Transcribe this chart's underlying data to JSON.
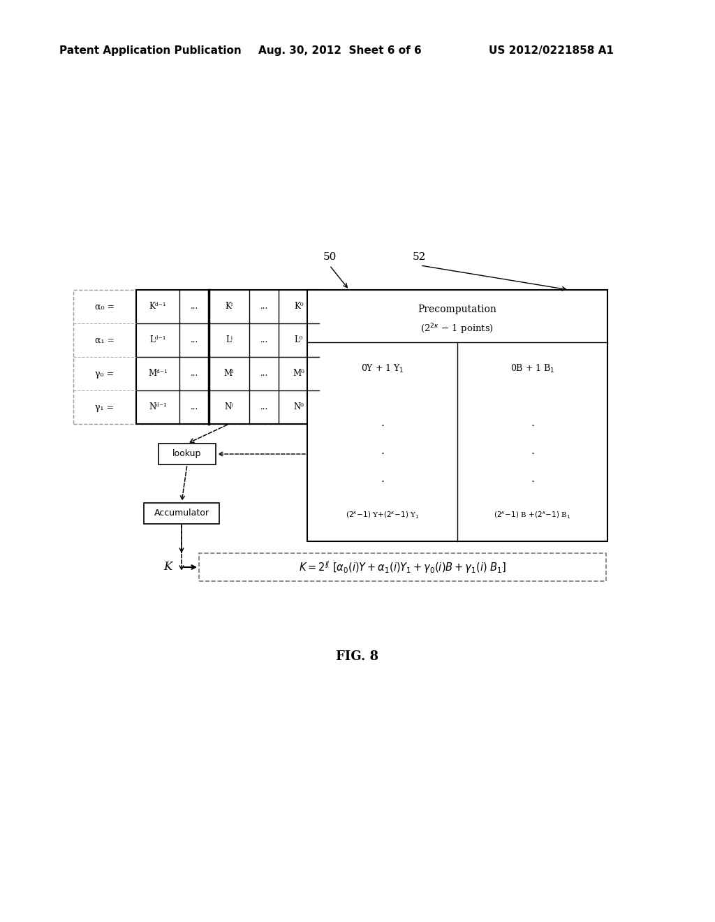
{
  "bg_color": "#ffffff",
  "header_left": "Patent Application Publication",
  "header_mid": "Aug. 30, 2012  Sheet 6 of 6",
  "header_right": "US 2012/0221858 A1",
  "fig_label": "FIG. 8",
  "label_50": "50",
  "label_52": "52",
  "label_K": "K",
  "lookup_label": "lookup",
  "accum_label": "Accumulator",
  "matrix_rows": [
    {
      "left": "α₀ =",
      "c1": "Kᵈ⁻¹",
      "c2": "...",
      "c3": "Kⁱ",
      "c4": "...",
      "c5": "K⁰"
    },
    {
      "left": "α₁ =",
      "c1": "Lᵈ⁻¹",
      "c2": "...",
      "c3": "Lⁱ",
      "c4": "...",
      "c5": "L⁰"
    },
    {
      "left": "γ₀ =",
      "c1": "Mᵈ⁻¹",
      "c2": "...",
      "c3": "Mⁱ",
      "c4": "...",
      "c5": "M⁰"
    },
    {
      "left": "γ₁ =",
      "c1": "Nᵈ⁻¹",
      "c2": "...",
      "c3": "Nⁱ",
      "c4": "...",
      "c5": "N⁰"
    }
  ]
}
